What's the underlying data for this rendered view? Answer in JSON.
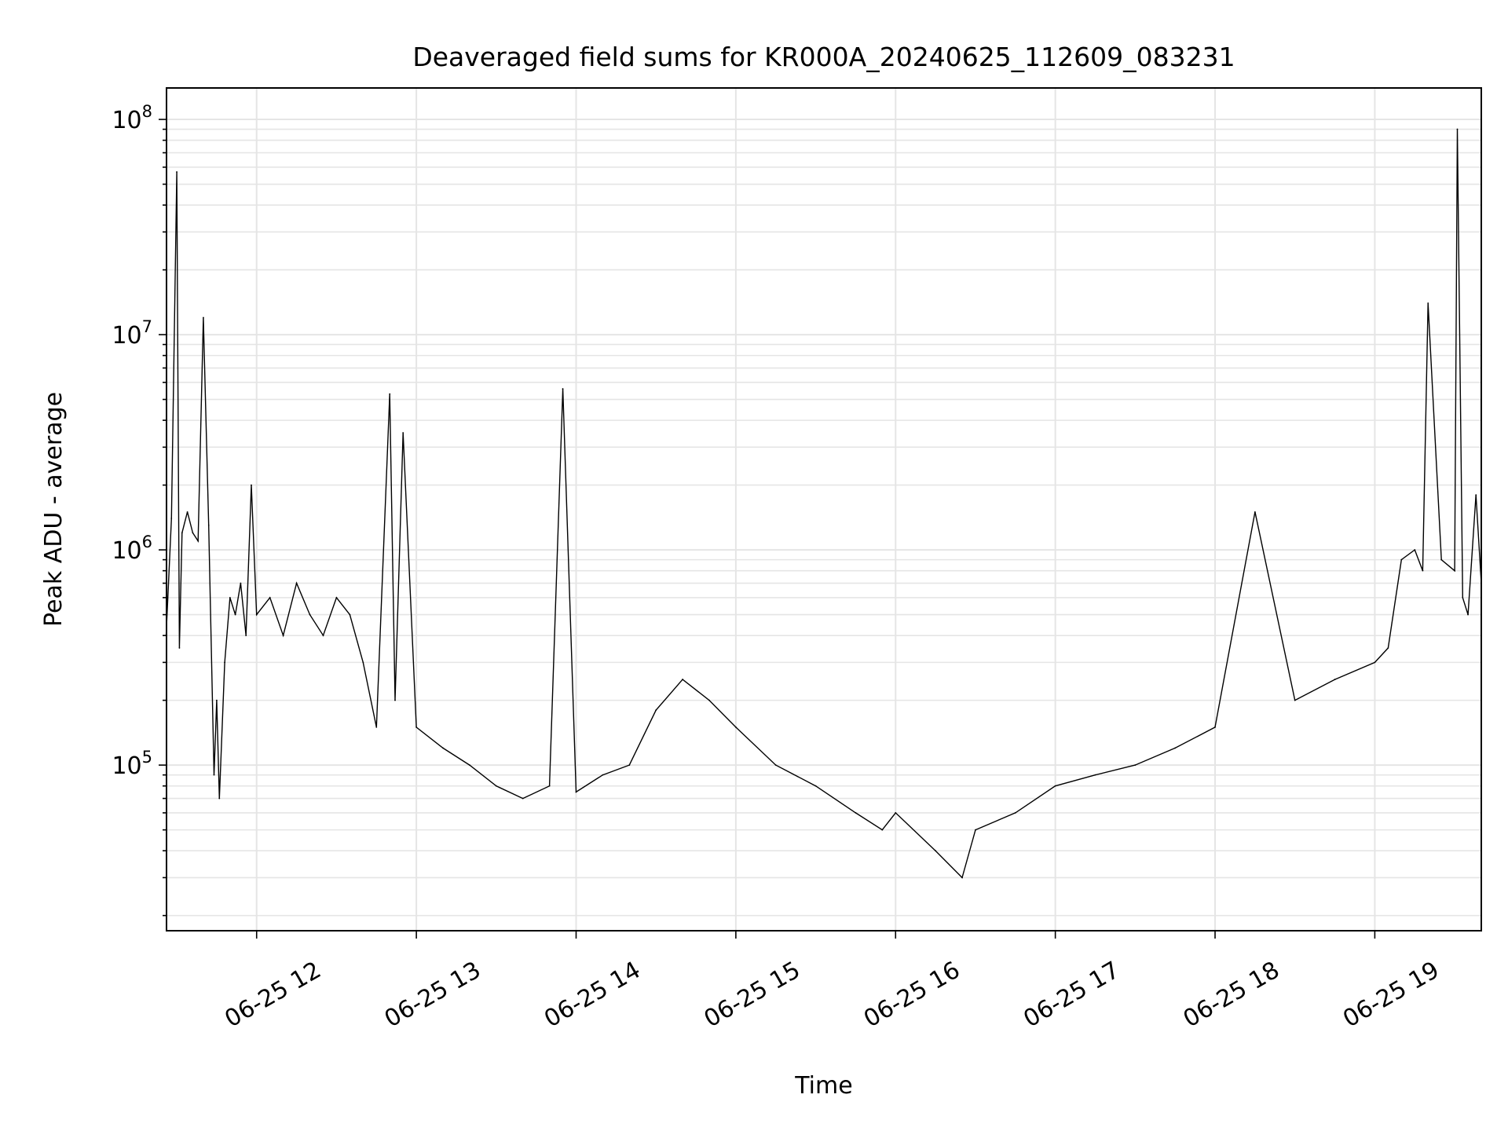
{
  "chart_data": {
    "type": "line",
    "title": "Deaveraged field sums for KR000A_20240625_112609_083231",
    "xlabel": "Time",
    "ylabel": "Peak ADU - average",
    "yscale": "log",
    "ylim": [
      17000,
      140000000
    ],
    "xlim": [
      "2024-06-25T11:26:09",
      "2024-06-25T19:40:00"
    ],
    "grid": true,
    "line_color": "#000000",
    "grid_color": "#e5e5e5",
    "x_ticks": [
      {
        "label": "06-25 12",
        "t": "2024-06-25T12:00:00"
      },
      {
        "label": "06-25 13",
        "t": "2024-06-25T13:00:00"
      },
      {
        "label": "06-25 14",
        "t": "2024-06-25T14:00:00"
      },
      {
        "label": "06-25 15",
        "t": "2024-06-25T15:00:00"
      },
      {
        "label": "06-25 16",
        "t": "2024-06-25T16:00:00"
      },
      {
        "label": "06-25 17",
        "t": "2024-06-25T17:00:00"
      },
      {
        "label": "06-25 18",
        "t": "2024-06-25T18:00:00"
      },
      {
        "label": "06-25 19",
        "t": "2024-06-25T19:00:00"
      }
    ],
    "y_ticks": [
      {
        "base": "10",
        "exp": "5",
        "value": 100000
      },
      {
        "base": "10",
        "exp": "6",
        "value": 1000000
      },
      {
        "base": "10",
        "exp": "7",
        "value": 10000000
      },
      {
        "base": "10",
        "exp": "8",
        "value": 100000000
      }
    ],
    "series": [
      {
        "x": [
          "2024-06-25T11:26",
          "2024-06-25T11:28",
          "2024-06-25T11:30",
          "2024-06-25T11:31",
          "2024-06-25T11:32",
          "2024-06-25T11:34",
          "2024-06-25T11:36",
          "2024-06-25T11:38",
          "2024-06-25T11:40",
          "2024-06-25T11:42",
          "2024-06-25T11:44",
          "2024-06-25T11:45",
          "2024-06-25T11:46",
          "2024-06-25T11:48",
          "2024-06-25T11:50",
          "2024-06-25T11:52",
          "2024-06-25T11:54",
          "2024-06-25T11:56",
          "2024-06-25T11:58",
          "2024-06-25T12:00",
          "2024-06-25T12:05",
          "2024-06-25T12:10",
          "2024-06-25T12:15",
          "2024-06-25T12:20",
          "2024-06-25T12:25",
          "2024-06-25T12:30",
          "2024-06-25T12:35",
          "2024-06-25T12:40",
          "2024-06-25T12:45",
          "2024-06-25T12:50",
          "2024-06-25T12:52",
          "2024-06-25T12:55",
          "2024-06-25T13:00",
          "2024-06-25T13:10",
          "2024-06-25T13:20",
          "2024-06-25T13:30",
          "2024-06-25T13:40",
          "2024-06-25T13:50",
          "2024-06-25T13:55",
          "2024-06-25T14:00",
          "2024-06-25T14:10",
          "2024-06-25T14:20",
          "2024-06-25T14:30",
          "2024-06-25T14:40",
          "2024-06-25T14:50",
          "2024-06-25T15:00",
          "2024-06-25T15:15",
          "2024-06-25T15:30",
          "2024-06-25T15:45",
          "2024-06-25T15:55",
          "2024-06-25T16:00",
          "2024-06-25T16:15",
          "2024-06-25T16:25",
          "2024-06-25T16:30",
          "2024-06-25T16:45",
          "2024-06-25T17:00",
          "2024-06-25T17:15",
          "2024-06-25T17:30",
          "2024-06-25T17:45",
          "2024-06-25T18:00",
          "2024-06-25T18:15",
          "2024-06-25T18:30",
          "2024-06-25T18:45",
          "2024-06-25T19:00",
          "2024-06-25T19:05",
          "2024-06-25T19:10",
          "2024-06-25T19:15",
          "2024-06-25T19:18",
          "2024-06-25T19:20",
          "2024-06-25T19:25",
          "2024-06-25T19:30",
          "2024-06-25T19:31",
          "2024-06-25T19:33",
          "2024-06-25T19:35",
          "2024-06-25T19:38",
          "2024-06-25T19:40"
        ],
        "y": [
          400000,
          1400000,
          57000000,
          350000,
          1200000,
          1500000,
          1200000,
          1100000,
          12000000,
          1300000,
          90000,
          200000,
          70000,
          300000,
          600000,
          500000,
          700000,
          400000,
          2000000,
          500000,
          600000,
          400000,
          700000,
          500000,
          400000,
          600000,
          500000,
          300000,
          150000,
          5300000,
          200000,
          3500000,
          150000,
          120000,
          100000,
          80000,
          70000,
          80000,
          5600000,
          75000,
          90000,
          100000,
          180000,
          250000,
          200000,
          150000,
          100000,
          80000,
          60000,
          50000,
          60000,
          40000,
          30000,
          50000,
          60000,
          80000,
          90000,
          100000,
          120000,
          150000,
          1500000,
          200000,
          250000,
          300000,
          350000,
          900000,
          1000000,
          800000,
          14000000,
          900000,
          800000,
          90000000,
          600000,
          500000,
          1800000,
          700000
        ]
      }
    ]
  }
}
